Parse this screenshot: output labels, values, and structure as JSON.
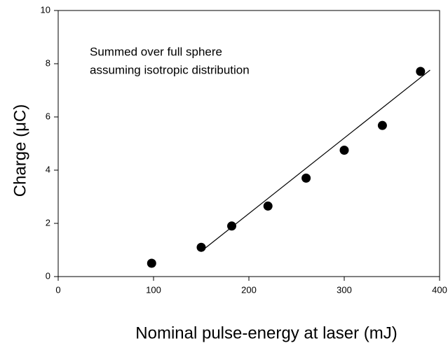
{
  "chart_data": {
    "type": "scatter",
    "x_label": "Nominal pulse-energy at laser (mJ)",
    "y_label": "Charge (μC)",
    "annotation": [
      "Summed over full sphere",
      "assuming isotropic distribution"
    ],
    "x": [
      98,
      150,
      182,
      220,
      260,
      300,
      340,
      380
    ],
    "values": [
      0.5,
      1.1,
      1.9,
      2.65,
      3.7,
      4.75,
      5.68,
      7.71
    ],
    "color": "#000000",
    "fit": {
      "x": [
        150,
        390
      ],
      "y": [
        0.95,
        7.76
      ]
    },
    "xlim": [
      0,
      400
    ],
    "xticks": [
      0,
      100,
      200,
      300,
      400
    ],
    "ylim": [
      0,
      10
    ],
    "yticks": [
      0,
      2,
      4,
      6,
      8,
      10
    ]
  }
}
